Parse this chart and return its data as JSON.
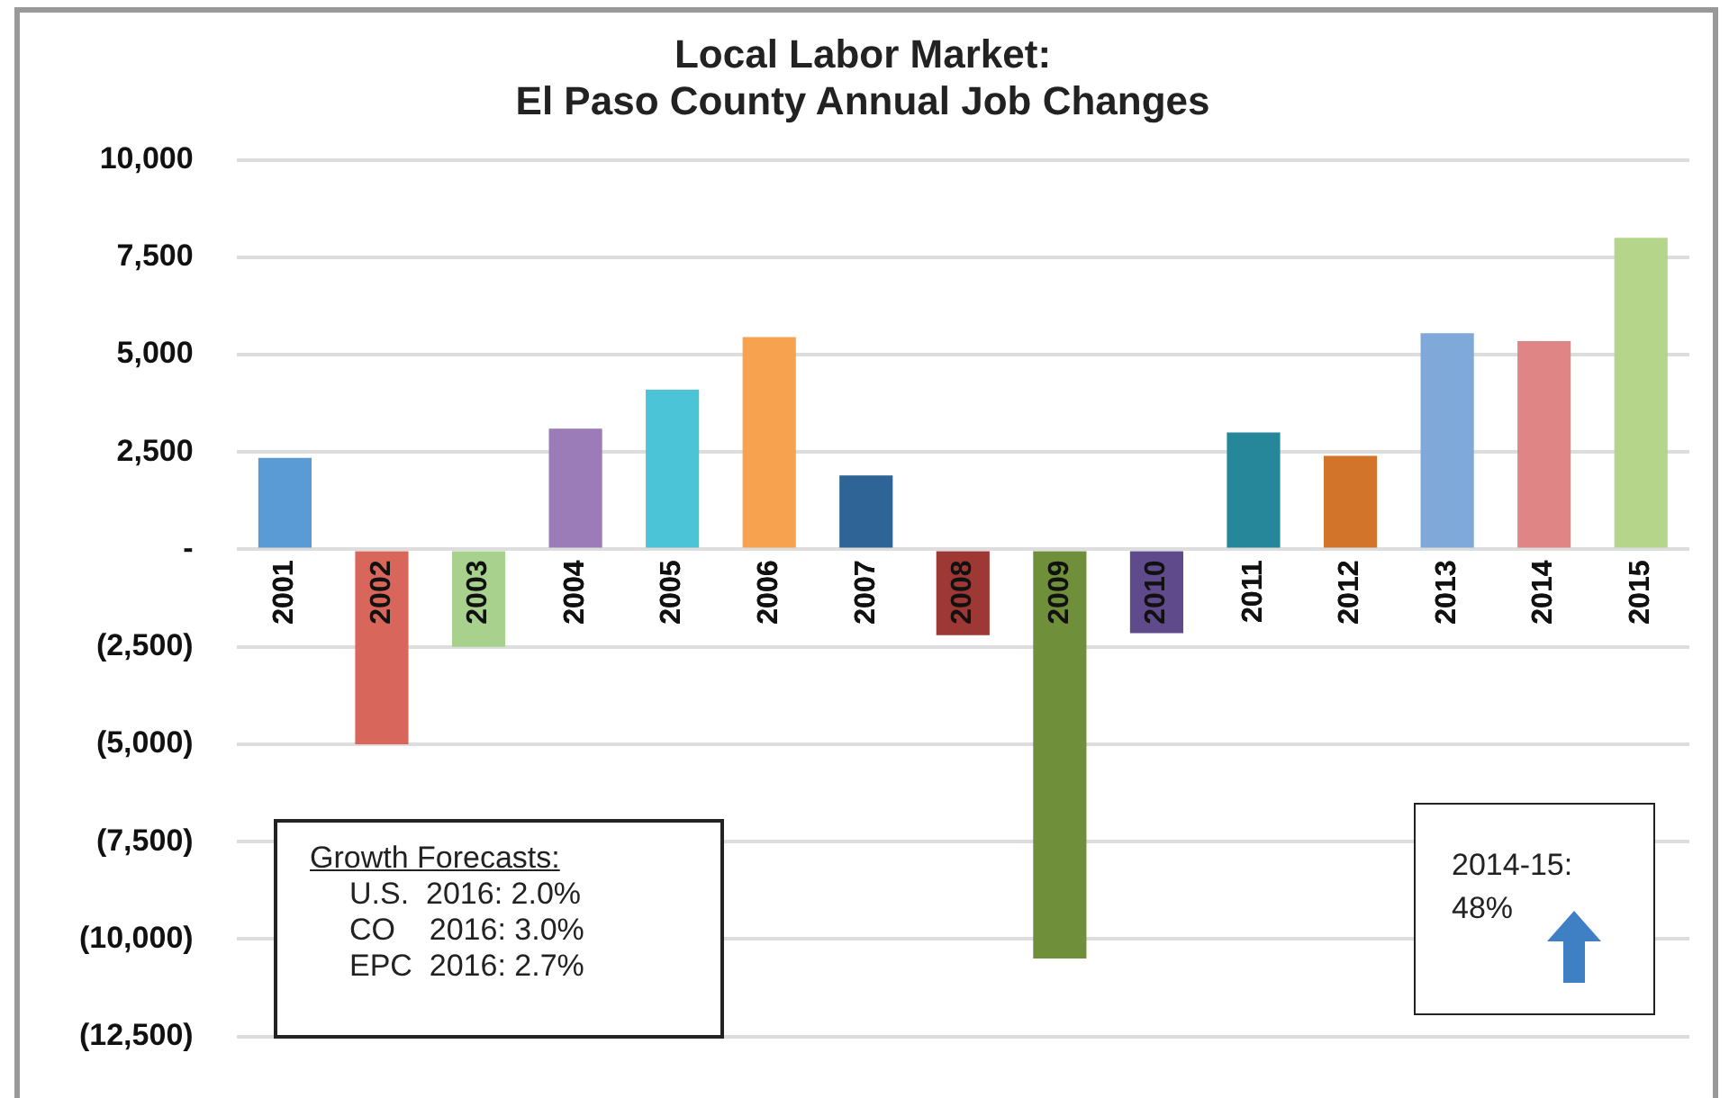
{
  "chart_data": {
    "type": "bar",
    "title": "Local Labor Market:\nEl Paso County Annual Job Changes",
    "categories": [
      "2001",
      "2002",
      "2003",
      "2004",
      "2005",
      "2006",
      "2007",
      "2008",
      "2009",
      "2010",
      "2011",
      "2012",
      "2013",
      "2014",
      "2015"
    ],
    "values": [
      2350,
      -5000,
      -2500,
      3100,
      4100,
      5450,
      1900,
      -2200,
      -10500,
      -2150,
      3000,
      2400,
      5550,
      5350,
      8000
    ],
    "colors": [
      "#5b9bd5",
      "#d9665b",
      "#a9d18e",
      "#9b7bb8",
      "#4bc4d8",
      "#f7a24f",
      "#2e6496",
      "#9e3835",
      "#6f8f3a",
      "#5f4a8b",
      "#26869a",
      "#d2752b",
      "#7fa9d8",
      "#e08585",
      "#b5d58a"
    ],
    "ylim": [
      -12500,
      10000
    ],
    "yticks": [
      {
        "value": -12500,
        "label": "(12,500)"
      },
      {
        "value": -10000,
        "label": "(10,000)"
      },
      {
        "value": -7500,
        "label": "(7,500)"
      },
      {
        "value": -5000,
        "label": "(5,000)"
      },
      {
        "value": -2500,
        "label": "(2,500)"
      },
      {
        "value": 0,
        "label": "-"
      },
      {
        "value": 2500,
        "label": "2,500"
      },
      {
        "value": 5000,
        "label": "5,000"
      },
      {
        "value": 7500,
        "label": "7,500"
      },
      {
        "value": 10000,
        "label": "10,000"
      }
    ],
    "grid": "y",
    "annotations": [
      "Growth Forecasts:",
      "U.S.  2016: 2.0%",
      "CO    2016: 3.0%",
      "EPC  2016: 2.7%",
      "2014-15:",
      "48%"
    ]
  }
}
